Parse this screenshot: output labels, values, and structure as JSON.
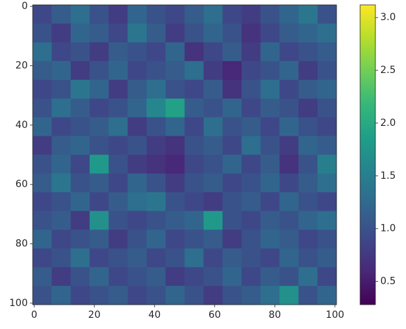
{
  "chart_data": {
    "type": "heatmap",
    "colormap": "viridis",
    "xlim": [
      -0.5,
      100.5
    ],
    "ylim": [
      100.5,
      -0.5
    ],
    "xticks": [
      0,
      20,
      40,
      60,
      80,
      100
    ],
    "yticks": [
      0,
      20,
      40,
      60,
      80,
      100
    ],
    "clim": [
      0.28,
      3.12
    ],
    "cticks": [
      0.5,
      {
        "value": 1,
        "label": "1.0"
      },
      1.5,
      {
        "value": 2,
        "label": "2.0"
      },
      2.5,
      {
        "value": 3,
        "label": "3.0"
      }
    ],
    "z": [
      [
        0.9,
        1.1,
        1.3,
        1.0,
        0.8,
        1.2,
        1.0,
        0.9,
        1.1,
        1.3,
        0.9,
        0.8,
        1.0,
        1.2,
        1.4,
        1.0
      ],
      [
        1.0,
        0.8,
        1.2,
        1.1,
        0.9,
        1.4,
        1.1,
        0.8,
        1.0,
        1.2,
        1.0,
        0.7,
        0.9,
        1.1,
        1.2,
        1.3
      ],
      [
        1.3,
        0.9,
        1.0,
        0.8,
        1.1,
        1.0,
        0.9,
        1.2,
        0.7,
        0.9,
        1.1,
        0.8,
        1.2,
        0.9,
        1.0,
        1.1
      ],
      [
        1.1,
        1.2,
        0.8,
        1.0,
        1.2,
        0.9,
        1.0,
        1.1,
        1.3,
        0.8,
        0.6,
        0.9,
        1.0,
        1.2,
        0.8,
        1.0
      ],
      [
        0.9,
        1.0,
        1.4,
        1.2,
        0.8,
        1.1,
        1.3,
        1.0,
        0.9,
        1.1,
        0.7,
        1.0,
        1.3,
        0.9,
        1.1,
        1.2
      ],
      [
        1.0,
        1.3,
        1.1,
        0.9,
        1.0,
        1.2,
        1.6,
        1.9,
        1.1,
        1.0,
        1.2,
        0.9,
        1.1,
        1.0,
        0.8,
        1.0
      ],
      [
        1.2,
        0.9,
        1.0,
        1.1,
        1.3,
        0.8,
        1.0,
        1.2,
        0.9,
        1.3,
        1.0,
        1.1,
        0.9,
        1.2,
        1.0,
        0.9
      ],
      [
        0.8,
        1.1,
        1.2,
        1.0,
        0.9,
        1.0,
        0.8,
        0.7,
        1.0,
        1.1,
        0.9,
        1.3,
        1.0,
        0.8,
        1.2,
        1.1
      ],
      [
        1.0,
        1.2,
        0.9,
        1.8,
        1.0,
        0.8,
        0.7,
        0.6,
        0.9,
        1.0,
        1.2,
        0.9,
        1.1,
        0.7,
        1.0,
        1.5
      ],
      [
        1.1,
        1.4,
        1.0,
        1.1,
        0.9,
        1.2,
        1.0,
        0.8,
        1.0,
        1.1,
        0.9,
        1.0,
        1.2,
        0.9,
        1.1,
        1.3
      ],
      [
        0.9,
        1.0,
        1.2,
        0.9,
        1.1,
        1.3,
        1.4,
        1.0,
        0.9,
        0.8,
        1.0,
        1.1,
        0.9,
        1.2,
        1.0,
        0.9
      ],
      [
        1.0,
        1.1,
        0.8,
        1.7,
        1.0,
        0.9,
        1.0,
        1.1,
        1.2,
        1.8,
        1.0,
        0.9,
        1.1,
        1.0,
        1.2,
        1.3
      ],
      [
        1.2,
        0.9,
        1.0,
        1.1,
        0.8,
        1.0,
        1.2,
        0.9,
        1.0,
        1.1,
        0.8,
        1.0,
        1.2,
        1.1,
        0.9,
        1.0
      ],
      [
        0.9,
        1.0,
        1.3,
        0.9,
        1.0,
        1.1,
        0.9,
        1.0,
        1.3,
        0.9,
        1.1,
        1.0,
        0.9,
        1.2,
        1.0,
        1.1
      ],
      [
        1.1,
        0.8,
        1.0,
        1.2,
        0.9,
        1.0,
        1.1,
        0.8,
        0.9,
        1.0,
        1.2,
        0.9,
        1.1,
        1.0,
        1.3,
        0.9
      ],
      [
        1.0,
        1.2,
        0.9,
        1.0,
        1.1,
        0.9,
        1.0,
        1.2,
        1.0,
        0.8,
        1.0,
        1.1,
        1.3,
        1.7,
        1.0,
        1.2
      ]
    ]
  }
}
